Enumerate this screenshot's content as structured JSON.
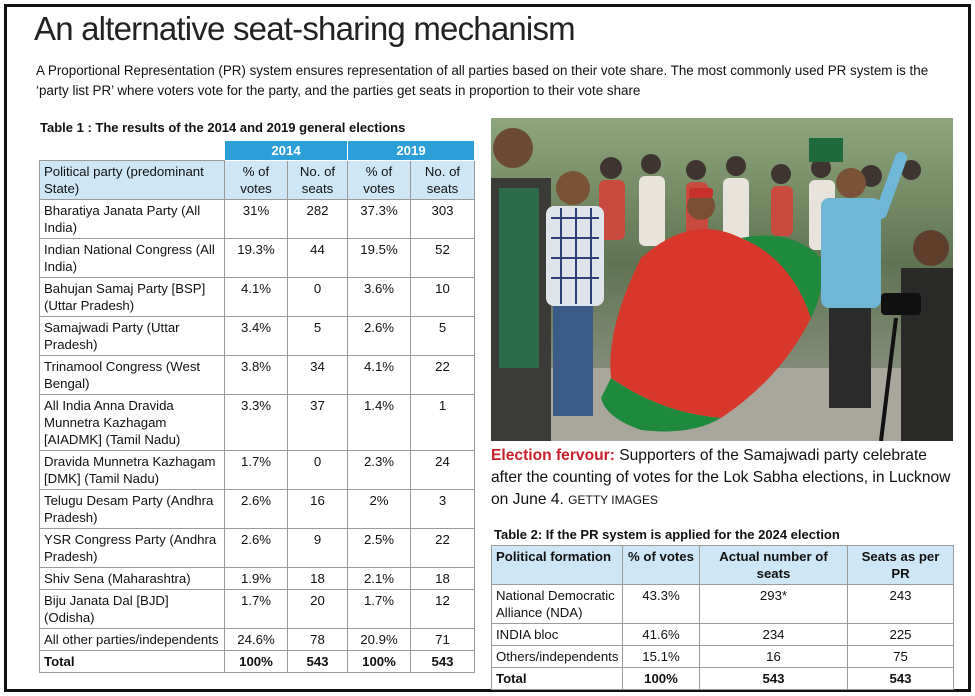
{
  "headline": "An alternative seat-sharing mechanism",
  "intro": "A Proportional Representation (PR) system ensures representation of all parties based on their vote share. The most commonly used PR system is the ‘party list PR’ where voters vote for the party, and the parties get seats in proportion to their vote share",
  "table1": {
    "title": "Table 1 : The results of the 2014 and 2019 general elections",
    "year_a": "2014",
    "year_b": "2019",
    "col_party": "Political party (predominant State)",
    "col_votes": "% of votes",
    "col_seats": "No. of seats",
    "rows": [
      {
        "party": "Bharatiya Janata Party (All India)",
        "v14": "31%",
        "s14": "282",
        "v19": "37.3%",
        "s19": "303"
      },
      {
        "party": "Indian National Congress (All India)",
        "v14": "19.3%",
        "s14": "44",
        "v19": "19.5%",
        "s19": "52"
      },
      {
        "party": "Bahujan Samaj Party [BSP] (Uttar Pradesh)",
        "v14": "4.1%",
        "s14": "0",
        "v19": "3.6%",
        "s19": "10"
      },
      {
        "party": "Samajwadi Party (Uttar Pradesh)",
        "v14": "3.4%",
        "s14": "5",
        "v19": "2.6%",
        "s19": "5"
      },
      {
        "party": "Trinamool Congress (West Bengal)",
        "v14": "3.8%",
        "s14": "34",
        "v19": "4.1%",
        "s19": "22"
      },
      {
        "party": "All India Anna Dravida Munnetra Kazhagam [AIADMK] (Tamil Nadu)",
        "v14": "3.3%",
        "s14": "37",
        "v19": "1.4%",
        "s19": "1"
      },
      {
        "party": "Dravida Munnetra Kazhagam [DMK] (Tamil Nadu)",
        "v14": "1.7%",
        "s14": "0",
        "v19": "2.3%",
        "s19": "24"
      },
      {
        "party": "Telugu Desam Party (Andhra Pradesh)",
        "v14": "2.6%",
        "s14": "16",
        "v19": "2%",
        "s19": "3"
      },
      {
        "party": "YSR Congress Party (Andhra Pradesh)",
        "v14": "2.6%",
        "s14": "9",
        "v19": "2.5%",
        "s19": "22"
      },
      {
        "party": "Shiv Sena (Maharashtra)",
        "v14": "1.9%",
        "s14": "18",
        "v19": "2.1%",
        "s19": "18"
      },
      {
        "party": "Biju Janata Dal [BJD] (Odisha)",
        "v14": "1.7%",
        "s14": "20",
        "v19": "1.7%",
        "s19": "12"
      },
      {
        "party": "All other parties/independents",
        "v14": "24.6%",
        "s14": "78",
        "v19": "20.9%",
        "s19": "71"
      }
    ],
    "total": {
      "party": "Total",
      "v14": "100%",
      "s14": "543",
      "v19": "100%",
      "s19": "543"
    }
  },
  "photo": {
    "flag_colors": [
      "#d8372c",
      "#1f8a3e"
    ]
  },
  "caption": {
    "lead": "Election fervour:",
    "text": " Supporters of the Samajwadi party celebrate after the counting of votes for the Lok Sabha elections, in Lucknow on June 4. ",
    "credit": "GETTY IMAGES"
  },
  "table2": {
    "title": "Table 2: If the PR system is applied for the 2024 election",
    "headers": [
      "Political formation",
      "% of votes",
      "Actual number of seats",
      "Seats as per PR"
    ],
    "rows": [
      {
        "name": "National Democratic Alliance (NDA)",
        "votes": "43.3%",
        "actual": "293*",
        "pr": "243"
      },
      {
        "name": "INDIA bloc",
        "votes": "41.6%",
        "actual": "234",
        "pr": "225"
      },
      {
        "name": "Others/independents",
        "votes": "15.1%",
        "actual": "16",
        "pr": "75"
      }
    ],
    "total": {
      "name": "Total",
      "votes": "100%",
      "actual": "543",
      "pr": "543"
    }
  },
  "colors": {
    "year_header": "#2c9fd8",
    "column_header": "#cde7f6",
    "caption_lead": "#c8202a"
  }
}
